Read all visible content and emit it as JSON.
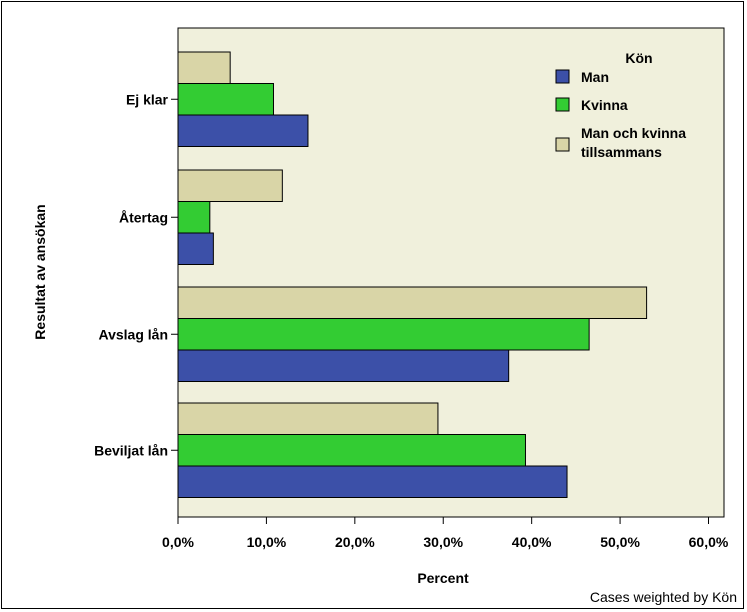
{
  "chart_data": {
    "type": "bar",
    "orientation": "horizontal",
    "categories": [
      "Ej klar",
      "Återtag",
      "Avslag lån",
      "Beviljat lån"
    ],
    "series": [
      {
        "name": "Man och kvinna tillsammans",
        "values": [
          5.9,
          11.8,
          53.0,
          29.4
        ],
        "color": "#d9d5a7"
      },
      {
        "name": "Kvinna",
        "values": [
          10.8,
          3.6,
          46.5,
          39.3
        ],
        "color": "#33cc33"
      },
      {
        "name": "Man",
        "values": [
          14.7,
          4.0,
          37.4,
          44.0
        ],
        "color": "#3c50a8"
      }
    ],
    "xlim": [
      0,
      60
    ],
    "xticks": [
      "0,0%",
      "10,0%",
      "20,0%",
      "30,0%",
      "40,0%",
      "50,0%",
      "60,0%"
    ],
    "xlabel": "Percent",
    "ylabel": "Resultat av ansökan",
    "legend": {
      "title": "Kön",
      "placement": "top-right",
      "entries": [
        "Man",
        "Kvinna",
        "Man och kvinna",
        "tillsammans"
      ]
    },
    "footnote": "Cases weighted by Kön",
    "grid": false
  },
  "colors": {
    "plot_bg": "#f0f0dc",
    "man": "#3c50a8",
    "kvinna": "#33cc33",
    "together": "#d9d5a7"
  }
}
